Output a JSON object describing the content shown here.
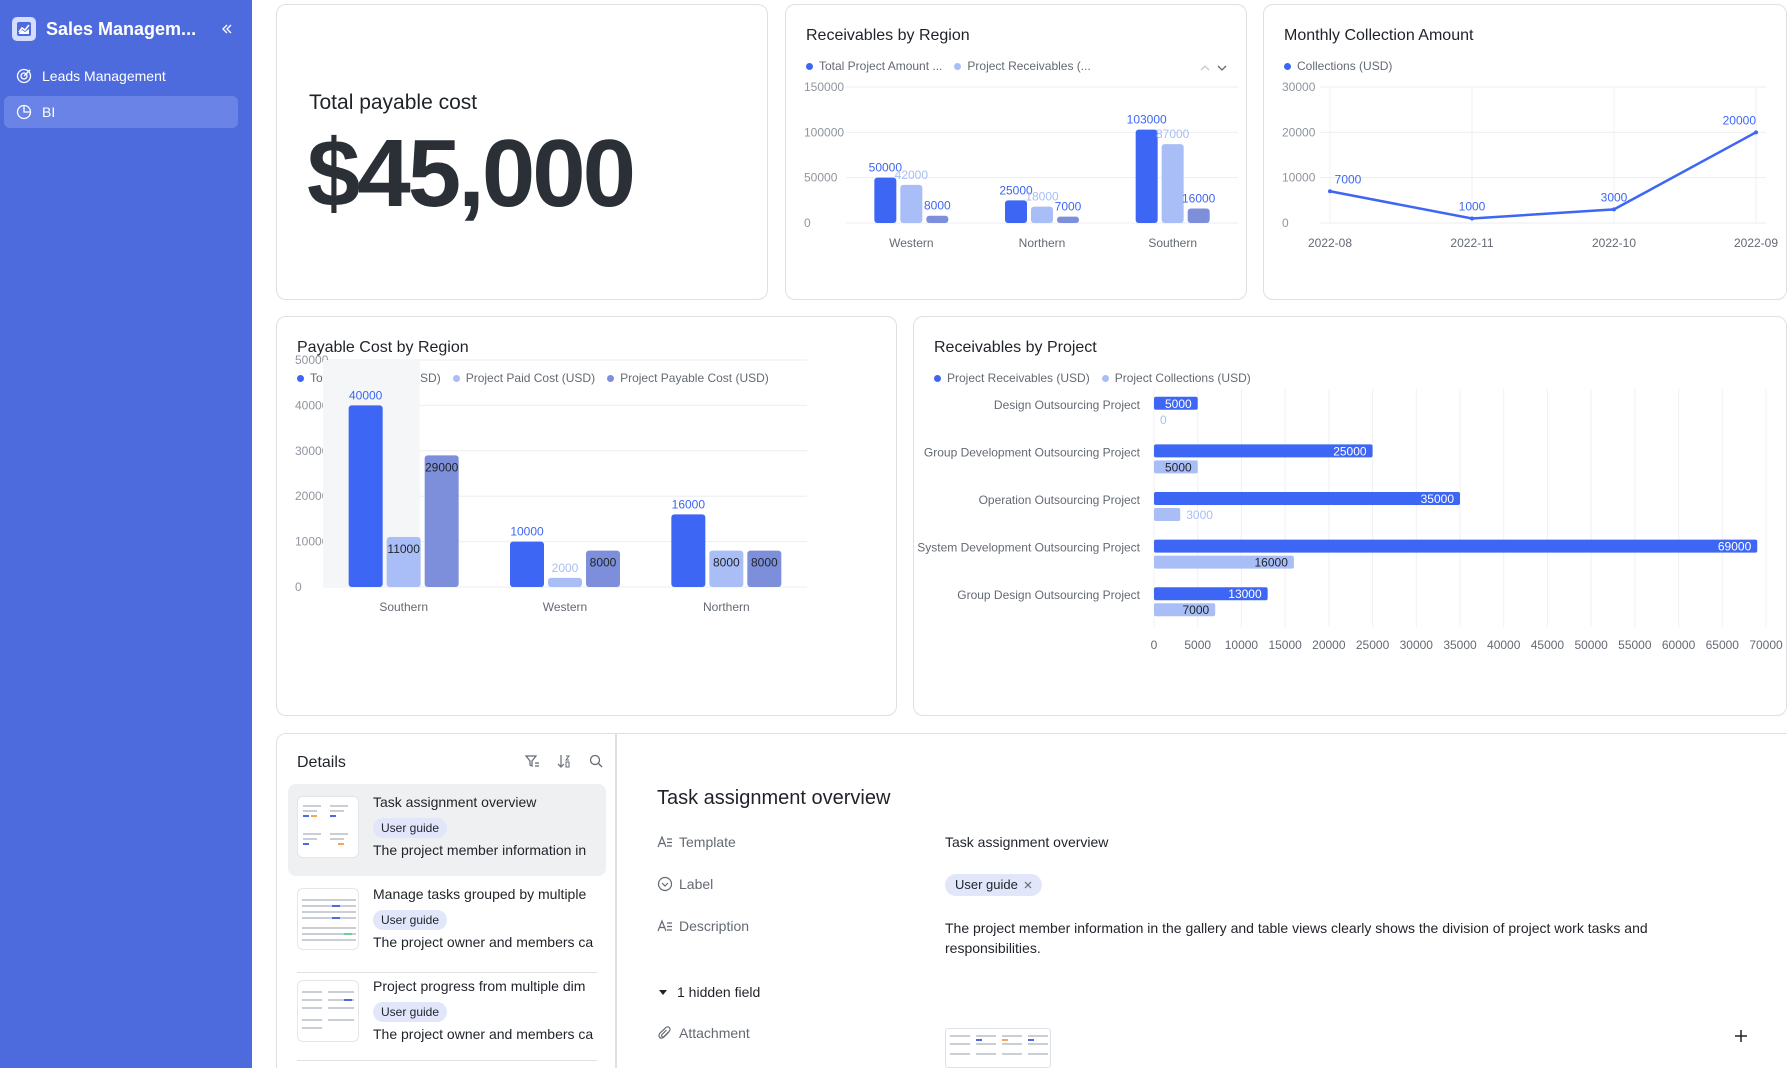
{
  "sidebar": {
    "app_title": "Sales Managem...",
    "items": [
      {
        "label": "Leads Management",
        "icon": "target-icon"
      },
      {
        "label": "BI",
        "icon": "pie-chart-icon"
      }
    ],
    "bg": "#4e6bdd"
  },
  "kpi": {
    "label": "Total payable cost",
    "value": "$45,000"
  },
  "colors": {
    "blue": "#3d66f5",
    "light": "#a9bef6",
    "dark": "#7d8fda"
  },
  "chart_data": [
    {
      "type": "bar",
      "title": "Receivables by Region",
      "categories": [
        "Western",
        "Northern",
        "Southern"
      ],
      "series": [
        {
          "name": "Total Project Amount ...",
          "values": [
            50000,
            25000,
            103000
          ]
        },
        {
          "name": "Project Receivables (...",
          "values": [
            42000,
            18000,
            87000
          ]
        },
        {
          "name": "",
          "values": [
            8000,
            7000,
            16000
          ]
        }
      ],
      "yticks": [
        0,
        50000,
        100000,
        150000
      ],
      "ylim": [
        0,
        150000
      ]
    },
    {
      "type": "line",
      "title": "Monthly Collection Amount",
      "x": [
        "2022-08",
        "2022-11",
        "2022-10",
        "2022-09"
      ],
      "series": [
        {
          "name": "Collections (USD)",
          "values": [
            7000,
            1000,
            3000,
            20000
          ]
        }
      ],
      "yticks": [
        0,
        10000,
        20000,
        30000
      ],
      "ylim": [
        0,
        30000
      ]
    },
    {
      "type": "bar",
      "title": "Payable Cost by Region",
      "categories": [
        "Southern",
        "Western",
        "Northern"
      ],
      "series": [
        {
          "name": "Total Project Cost (USD)",
          "values": [
            40000,
            10000,
            16000
          ]
        },
        {
          "name": "Project Paid Cost (USD)",
          "values": [
            11000,
            2000,
            8000
          ]
        },
        {
          "name": "Project Payable Cost (USD)",
          "values": [
            29000,
            8000,
            8000
          ]
        }
      ],
      "yticks": [
        0,
        10000,
        20000,
        30000,
        40000,
        50000
      ],
      "ylim": [
        0,
        50000
      ]
    },
    {
      "type": "bar",
      "orientation": "horizontal",
      "title": "Receivables by Project",
      "categories": [
        "Design Outsourcing Project",
        "Group Development Outsourcing Project",
        "Operation Outsourcing Project",
        "System Development Outsourcing Project",
        "Group Design Outsourcing Project"
      ],
      "series": [
        {
          "name": "Project Receivables (USD)",
          "values": [
            5000,
            25000,
            35000,
            69000,
            13000
          ]
        },
        {
          "name": "Project Collections (USD)",
          "values": [
            0,
            5000,
            3000,
            16000,
            7000
          ]
        }
      ],
      "xticks": [
        0,
        5000,
        10000,
        15000,
        20000,
        25000,
        30000,
        35000,
        40000,
        45000,
        50000,
        55000,
        60000,
        65000,
        70000
      ],
      "xlim": [
        0,
        70000
      ]
    }
  ],
  "details": {
    "title": "Details",
    "items": [
      {
        "name": "Task assignment overview",
        "tag": "User guide",
        "desc": "The project member information in"
      },
      {
        "name": "Manage tasks grouped by multiple",
        "tag": "User guide",
        "desc": "The project owner and members ca"
      },
      {
        "name": "Project progress from multiple dim",
        "tag": "User guide",
        "desc": "The project owner and members ca"
      }
    ]
  },
  "record": {
    "title": "Task assignment overview",
    "fields": {
      "template_label": "Template",
      "template_value": "Task assignment overview",
      "label_label": "Label",
      "label_value": "User guide",
      "description_label": "Description",
      "description_value": "The project member information in the gallery and table views clearly shows the division of project work tasks and responsibilities.",
      "hidden": "1 hidden field",
      "attachment_label": "Attachment"
    }
  }
}
